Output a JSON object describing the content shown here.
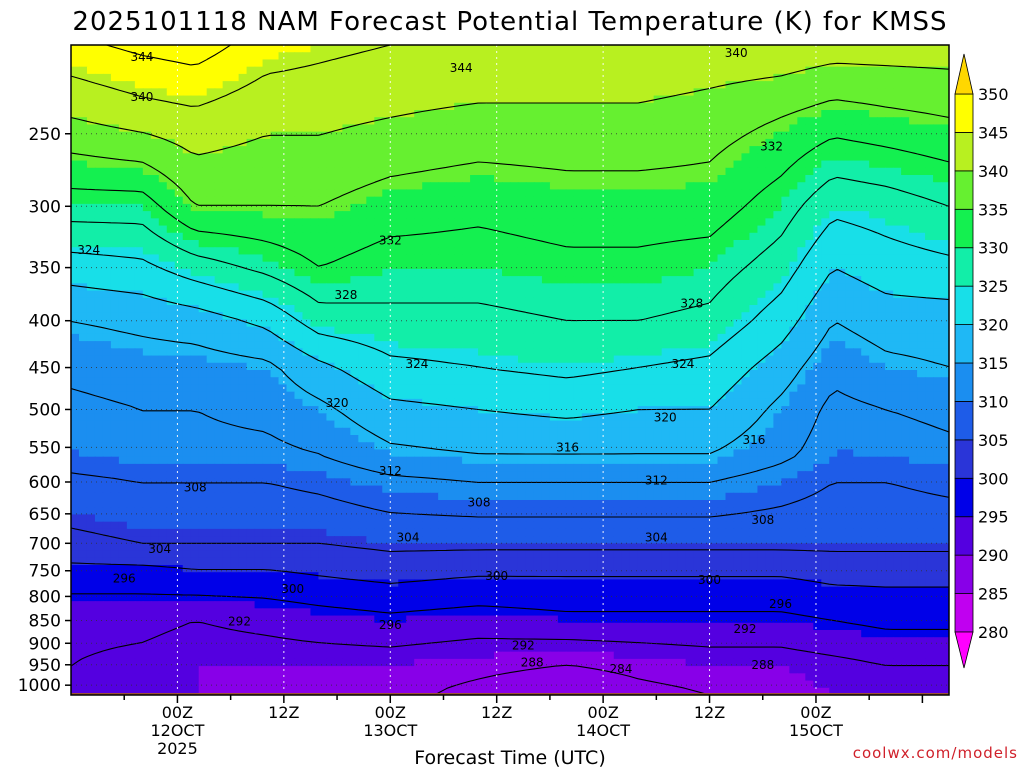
{
  "chart_data": {
    "type": "heatmap",
    "title": "2025101118 NAM Forecast Potential Temperature (K) for KMSS",
    "xlabel": "Forecast Time (UTC)",
    "ylabel": "",
    "x_range_hours": [
      -6,
      93
    ],
    "x_ticks": [
      {
        "hour": 6,
        "label": "00Z",
        "sub": "12OCT",
        "sub2": "2025"
      },
      {
        "hour": 18,
        "label": "12Z",
        "sub": "",
        "sub2": ""
      },
      {
        "hour": 30,
        "label": "00Z",
        "sub": "13OCT",
        "sub2": ""
      },
      {
        "hour": 42,
        "label": "12Z",
        "sub": "",
        "sub2": ""
      },
      {
        "hour": 54,
        "label": "00Z",
        "sub": "14OCT",
        "sub2": ""
      },
      {
        "hour": 66,
        "label": "12Z",
        "sub": "",
        "sub2": ""
      },
      {
        "hour": 78,
        "label": "00Z",
        "sub": "15OCT",
        "sub2": ""
      }
    ],
    "y_axis": {
      "type": "log-pressure",
      "unit": "hPa",
      "top": 200,
      "bottom": 1025
    },
    "y_ticks": [
      250,
      300,
      350,
      400,
      450,
      500,
      550,
      600,
      650,
      700,
      750,
      800,
      850,
      900,
      950,
      1000
    ],
    "ground_level_hpa": 1020,
    "colorbar": {
      "levels": [
        280,
        285,
        290,
        295,
        300,
        305,
        310,
        315,
        320,
        325,
        330,
        335,
        340,
        345,
        350
      ],
      "colors": [
        "#ff00ff",
        "#c000f0",
        "#8800e8",
        "#5400e0",
        "#0000e8",
        "#2a35d8",
        "#1e5ce8",
        "#1b8ef0",
        "#1fb8f5",
        "#18dfe8",
        "#12eea8",
        "#14f050",
        "#66f030",
        "#b8f020",
        "#ffff00",
        "#ffd700"
      ]
    },
    "contour_interval": 4,
    "contour_labels": [
      {
        "value": 344,
        "hour": 2,
        "hpa": 206
      },
      {
        "value": 344,
        "hour": 38,
        "hpa": 212
      },
      {
        "value": 340,
        "hour": 69,
        "hpa": 204
      },
      {
        "value": 340,
        "hour": 2,
        "hpa": 228
      },
      {
        "value": 332,
        "hour": 73,
        "hpa": 258
      },
      {
        "value": 332,
        "hour": 30,
        "hpa": 327
      },
      {
        "value": 324,
        "hour": -4,
        "hpa": 335
      },
      {
        "value": 328,
        "hour": 25,
        "hpa": 375
      },
      {
        "value": 328,
        "hour": 64,
        "hpa": 383
      },
      {
        "value": 324,
        "hour": 33,
        "hpa": 446
      },
      {
        "value": 324,
        "hour": 63,
        "hpa": 446
      },
      {
        "value": 320,
        "hour": 24,
        "hpa": 492
      },
      {
        "value": 320,
        "hour": 61,
        "hpa": 510
      },
      {
        "value": 316,
        "hour": 50,
        "hpa": 550
      },
      {
        "value": 316,
        "hour": 71,
        "hpa": 540
      },
      {
        "value": 312,
        "hour": 30,
        "hpa": 584
      },
      {
        "value": 312,
        "hour": 60,
        "hpa": 598
      },
      {
        "value": 308,
        "hour": 8,
        "hpa": 608
      },
      {
        "value": 308,
        "hour": 40,
        "hpa": 632
      },
      {
        "value": 308,
        "hour": 72,
        "hpa": 660
      },
      {
        "value": 304,
        "hour": 32,
        "hpa": 690
      },
      {
        "value": 304,
        "hour": 60,
        "hpa": 690
      },
      {
        "value": 304,
        "hour": 4,
        "hpa": 710
      },
      {
        "value": 300,
        "hour": 42,
        "hpa": 760
      },
      {
        "value": 300,
        "hour": 66,
        "hpa": 768
      },
      {
        "value": 296,
        "hour": 0,
        "hpa": 765
      },
      {
        "value": 300,
        "hour": 19,
        "hpa": 785
      },
      {
        "value": 296,
        "hour": 74,
        "hpa": 815
      },
      {
        "value": 292,
        "hour": 13,
        "hpa": 852
      },
      {
        "value": 296,
        "hour": 30,
        "hpa": 860
      },
      {
        "value": 292,
        "hour": 70,
        "hpa": 868
      },
      {
        "value": 292,
        "hour": 45,
        "hpa": 905
      },
      {
        "value": 288,
        "hour": 46,
        "hpa": 945
      },
      {
        "value": 284,
        "hour": 56,
        "hpa": 960
      },
      {
        "value": 288,
        "hour": 72,
        "hpa": 950
      }
    ],
    "profiles": [
      {
        "hour": -6,
        "theta": [
          [
            200,
            347
          ],
          [
            240,
            340
          ],
          [
            300,
            330
          ],
          [
            350,
            322
          ],
          [
            400,
            316
          ],
          [
            450,
            313
          ],
          [
            500,
            311
          ],
          [
            560,
            310
          ],
          [
            600,
            307
          ],
          [
            700,
            303
          ],
          [
            760,
            298
          ],
          [
            850,
            293
          ],
          [
            950,
            292
          ],
          [
            1020,
            292
          ]
        ]
      },
      {
        "hour": 2,
        "theta": [
          [
            200,
            349
          ],
          [
            240,
            342
          ],
          [
            300,
            330
          ],
          [
            350,
            323
          ],
          [
            400,
            317
          ],
          [
            450,
            314
          ],
          [
            500,
            312
          ],
          [
            560,
            311
          ],
          [
            600,
            308
          ],
          [
            700,
            304
          ],
          [
            760,
            298
          ],
          [
            850,
            293
          ],
          [
            950,
            291
          ],
          [
            1020,
            291
          ]
        ]
      },
      {
        "hour": 8,
        "theta": [
          [
            200,
            350
          ],
          [
            240,
            343
          ],
          [
            300,
            336
          ],
          [
            350,
            326
          ],
          [
            400,
            318
          ],
          [
            450,
            314
          ],
          [
            500,
            312
          ],
          [
            560,
            311
          ],
          [
            600,
            308
          ],
          [
            700,
            304
          ],
          [
            760,
            299
          ],
          [
            850,
            292
          ],
          [
            950,
            290
          ],
          [
            1020,
            290
          ]
        ]
      },
      {
        "hour": 16,
        "theta": [
          [
            200,
            346
          ],
          [
            240,
            341
          ],
          [
            300,
            336
          ],
          [
            350,
            329
          ],
          [
            400,
            321
          ],
          [
            450,
            315
          ],
          [
            500,
            313
          ],
          [
            560,
            311
          ],
          [
            600,
            308
          ],
          [
            700,
            304
          ],
          [
            760,
            299
          ],
          [
            850,
            293
          ],
          [
            950,
            290
          ],
          [
            1020,
            289
          ]
        ]
      },
      {
        "hour": 22,
        "theta": [
          [
            200,
            345
          ],
          [
            240,
            341
          ],
          [
            300,
            336
          ],
          [
            350,
            332
          ],
          [
            400,
            326
          ],
          [
            450,
            319
          ],
          [
            500,
            315
          ],
          [
            560,
            312
          ],
          [
            600,
            309
          ],
          [
            700,
            304
          ],
          [
            760,
            300
          ],
          [
            850,
            294
          ],
          [
            950,
            290
          ],
          [
            1020,
            289
          ]
        ]
      },
      {
        "hour": 30,
        "theta": [
          [
            200,
            344
          ],
          [
            240,
            340
          ],
          [
            300,
            334
          ],
          [
            350,
            330
          ],
          [
            400,
            327
          ],
          [
            450,
            323
          ],
          [
            500,
            319
          ],
          [
            560,
            315
          ],
          [
            600,
            311
          ],
          [
            700,
            305
          ],
          [
            760,
            301
          ],
          [
            850,
            295
          ],
          [
            950,
            290
          ],
          [
            1020,
            289
          ]
        ]
      },
      {
        "hour": 40,
        "theta": [
          [
            200,
            344
          ],
          [
            240,
            339
          ],
          [
            300,
            333
          ],
          [
            350,
            330
          ],
          [
            400,
            327
          ],
          [
            450,
            324
          ],
          [
            500,
            320
          ],
          [
            560,
            316
          ],
          [
            600,
            312
          ],
          [
            700,
            305
          ],
          [
            760,
            300
          ],
          [
            850,
            294
          ],
          [
            950,
            289
          ],
          [
            1020,
            287
          ]
        ]
      },
      {
        "hour": 50,
        "theta": [
          [
            200,
            344
          ],
          [
            240,
            339
          ],
          [
            300,
            334
          ],
          [
            350,
            331
          ],
          [
            400,
            328
          ],
          [
            450,
            325
          ],
          [
            500,
            321
          ],
          [
            560,
            316
          ],
          [
            600,
            312
          ],
          [
            700,
            305
          ],
          [
            760,
            300
          ],
          [
            850,
            295
          ],
          [
            950,
            288
          ],
          [
            1020,
            285
          ]
        ]
      },
      {
        "hour": 58,
        "theta": [
          [
            200,
            344
          ],
          [
            240,
            339
          ],
          [
            300,
            334
          ],
          [
            350,
            331
          ],
          [
            400,
            328
          ],
          [
            450,
            324
          ],
          [
            500,
            320
          ],
          [
            560,
            316
          ],
          [
            600,
            312
          ],
          [
            700,
            305
          ],
          [
            760,
            300
          ],
          [
            850,
            295
          ],
          [
            950,
            289
          ],
          [
            1020,
            287
          ]
        ]
      },
      {
        "hour": 66,
        "theta": [
          [
            200,
            343
          ],
          [
            240,
            338
          ],
          [
            300,
            334
          ],
          [
            350,
            330
          ],
          [
            400,
            327
          ],
          [
            450,
            323
          ],
          [
            500,
            320
          ],
          [
            560,
            316
          ],
          [
            600,
            312
          ],
          [
            700,
            305
          ],
          [
            760,
            300
          ],
          [
            850,
            295
          ],
          [
            950,
            290
          ],
          [
            1020,
            288
          ]
        ]
      },
      {
        "hour": 74,
        "theta": [
          [
            200,
            343
          ],
          [
            240,
            336
          ],
          [
            300,
            330
          ],
          [
            350,
            326
          ],
          [
            400,
            322
          ],
          [
            450,
            318
          ],
          [
            500,
            315
          ],
          [
            560,
            313
          ],
          [
            600,
            310
          ],
          [
            700,
            305
          ],
          [
            760,
            300
          ],
          [
            850,
            295
          ],
          [
            950,
            290
          ],
          [
            1020,
            289
          ]
        ]
      },
      {
        "hour": 80,
        "theta": [
          [
            200,
            342
          ],
          [
            240,
            334
          ],
          [
            300,
            325
          ],
          [
            350,
            320
          ],
          [
            400,
            316
          ],
          [
            450,
            313
          ],
          [
            500,
            311
          ],
          [
            560,
            310
          ],
          [
            600,
            308
          ],
          [
            700,
            305
          ],
          [
            760,
            301
          ],
          [
            850,
            296
          ],
          [
            950,
            291
          ],
          [
            1020,
            290
          ]
        ]
      },
      {
        "hour": 86,
        "theta": [
          [
            200,
            342
          ],
          [
            240,
            335
          ],
          [
            300,
            326
          ],
          [
            350,
            322
          ],
          [
            400,
            318
          ],
          [
            450,
            315
          ],
          [
            500,
            312
          ],
          [
            560,
            310
          ],
          [
            600,
            308
          ],
          [
            700,
            305
          ],
          [
            760,
            301
          ],
          [
            850,
            297
          ],
          [
            950,
            292
          ],
          [
            1020,
            291
          ]
        ]
      },
      {
        "hour": 93,
        "theta": [
          [
            200,
            342
          ],
          [
            240,
            336
          ],
          [
            300,
            328
          ],
          [
            350,
            323
          ],
          [
            400,
            318
          ],
          [
            450,
            316
          ],
          [
            500,
            313
          ],
          [
            560,
            311
          ],
          [
            600,
            309
          ],
          [
            700,
            305
          ],
          [
            760,
            301
          ],
          [
            850,
            297
          ],
          [
            950,
            292
          ],
          [
            1020,
            291
          ]
        ]
      }
    ]
  },
  "credit": "coolwx.com/models",
  "colors": {
    "ground": "#a0522d",
    "credit": "#d0202a"
  }
}
